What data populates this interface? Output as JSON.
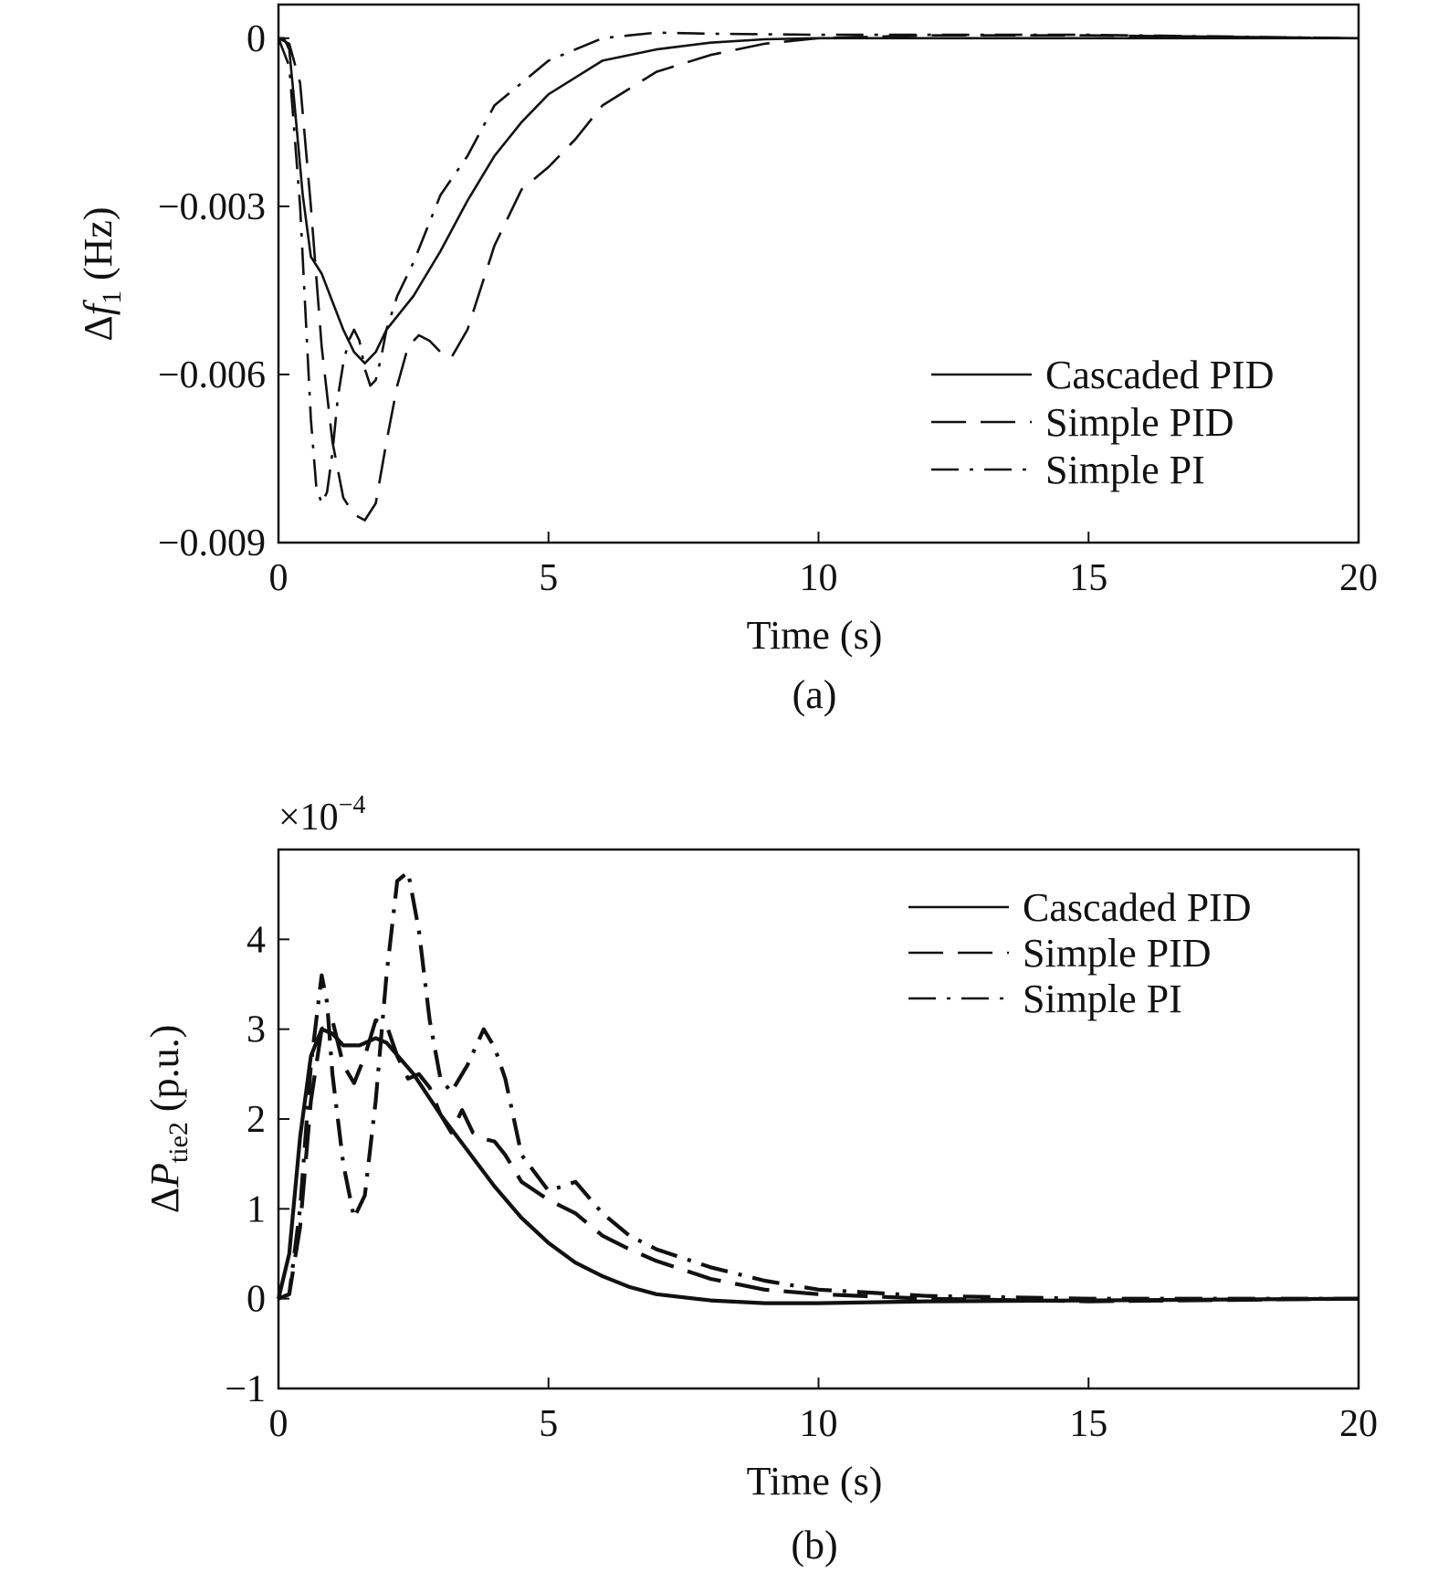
{
  "chart_data": [
    {
      "type": "line",
      "panel": "(a)",
      "xlabel": "Time (s)",
      "ylabel": "Δf₁ (Hz)",
      "ylabel_main": "Δ",
      "ylabel_var": "f",
      "ylabel_sub": "1",
      "ylabel_unit": " (Hz)",
      "xlim": [
        0,
        20
      ],
      "ylim": [
        -0.009,
        0.0006
      ],
      "xticks": [
        0,
        5,
        10,
        15,
        20
      ],
      "xtick_labels": [
        "0",
        "5",
        "10",
        "15",
        "20"
      ],
      "yticks": [
        0,
        -0.003,
        -0.006,
        -0.009
      ],
      "ytick_labels": [
        "0",
        "−0.003",
        "−0.006",
        "−0.009"
      ],
      "grid": false,
      "legend_position": "lower-right",
      "series": [
        {
          "name": "Cascaded PID",
          "style": "solid",
          "x": [
            0,
            0.1,
            0.2,
            0.3,
            0.45,
            0.6,
            0.8,
            1.0,
            1.2,
            1.4,
            1.6,
            1.8,
            2.0,
            2.5,
            3.0,
            3.5,
            4.0,
            4.5,
            5.0,
            5.5,
            6.0,
            7.0,
            8.0,
            9.0,
            10.0,
            12.0,
            15.0,
            20.0
          ],
          "y": [
            0,
            0,
            -0.0002,
            -0.0012,
            -0.0028,
            -0.0039,
            -0.0042,
            -0.0047,
            -0.0052,
            -0.0056,
            -0.0058,
            -0.0056,
            -0.0052,
            -0.0046,
            -0.0038,
            -0.0029,
            -0.0021,
            -0.0015,
            -0.001,
            -0.0007,
            -0.0004,
            -0.0002,
            -8e-05,
            -2e-05,
            0,
            0,
            0,
            0
          ]
        },
        {
          "name": "Simple PID",
          "style": "dashed",
          "x": [
            0,
            0.2,
            0.4,
            0.6,
            0.8,
            1.0,
            1.2,
            1.4,
            1.6,
            1.8,
            2.0,
            2.2,
            2.4,
            2.6,
            2.8,
            3.0,
            3.2,
            3.5,
            3.8,
            4.0,
            4.5,
            5.0,
            5.5,
            6.0,
            6.5,
            7.0,
            8.0,
            9.0,
            10.0,
            12.0,
            15.0,
            20.0
          ],
          "y": [
            0,
            -0.0001,
            -0.0008,
            -0.003,
            -0.0055,
            -0.0072,
            -0.0082,
            -0.0085,
            -0.0086,
            -0.0083,
            -0.0072,
            -0.0062,
            -0.0055,
            -0.0053,
            -0.0054,
            -0.0056,
            -0.0057,
            -0.0052,
            -0.0043,
            -0.0037,
            -0.0027,
            -0.0023,
            -0.0018,
            -0.0012,
            -0.0009,
            -0.0006,
            -0.0003,
            -0.0001,
            0,
            5e-05,
            5e-05,
            0
          ]
        },
        {
          "name": "Simple PI",
          "style": "dash-dot",
          "x": [
            0,
            0.2,
            0.4,
            0.6,
            0.7,
            0.8,
            0.9,
            1.0,
            1.1,
            1.2,
            1.3,
            1.4,
            1.5,
            1.6,
            1.7,
            1.8,
            1.9,
            2.0,
            2.2,
            2.5,
            3.0,
            3.5,
            4.0,
            4.5,
            5.0,
            5.5,
            6.0,
            6.5,
            7.0,
            8.0,
            10.0,
            15.0,
            20.0
          ],
          "y": [
            0,
            -0.0005,
            -0.003,
            -0.0068,
            -0.008,
            -0.0083,
            -0.0081,
            -0.0074,
            -0.0064,
            -0.0058,
            -0.0054,
            -0.0052,
            -0.0054,
            -0.0059,
            -0.0062,
            -0.0061,
            -0.0057,
            -0.0052,
            -0.0046,
            -0.004,
            -0.0028,
            -0.0021,
            -0.0012,
            -0.0008,
            -0.0004,
            -0.0002,
            0,
            5e-05,
            0.0001,
            8e-05,
            6e-05,
            6e-05,
            0
          ]
        }
      ]
    },
    {
      "type": "line",
      "panel": "(b)",
      "xlabel": "Time (s)",
      "ylabel": "ΔP_tie2 (p.u.)",
      "ylabel_main": "Δ",
      "ylabel_var": "P",
      "ylabel_sub": "tie2",
      "ylabel_unit": " (p.u.)",
      "multiplier": "×10",
      "multiplier_exp": "−4",
      "xlim": [
        0,
        20
      ],
      "ylim": [
        -1,
        5
      ],
      "xticks": [
        0,
        5,
        10,
        15,
        20
      ],
      "xtick_labels": [
        "0",
        "5",
        "10",
        "15",
        "20"
      ],
      "yticks": [
        4,
        3,
        2,
        1,
        0,
        -1
      ],
      "ytick_labels": [
        "4",
        "3",
        "2",
        "1",
        "0",
        "−1"
      ],
      "grid": false,
      "legend_position": "upper-right",
      "series": [
        {
          "name": "Cascaded PID",
          "style": "solid",
          "x": [
            0,
            0.2,
            0.4,
            0.6,
            0.8,
            1.0,
            1.2,
            1.5,
            1.8,
            2.0,
            2.5,
            3.0,
            3.5,
            4.0,
            4.5,
            5.0,
            5.5,
            6.0,
            6.5,
            7.0,
            8.0,
            9.0,
            10.0,
            12.0,
            15.0,
            20.0
          ],
          "y": [
            0,
            0.5,
            1.8,
            2.7,
            3.0,
            2.95,
            2.82,
            2.82,
            2.9,
            2.85,
            2.5,
            2.05,
            1.65,
            1.25,
            0.9,
            0.62,
            0.4,
            0.25,
            0.13,
            0.05,
            -0.02,
            -0.05,
            -0.05,
            -0.03,
            -0.02,
            0
          ]
        },
        {
          "name": "Simple PID",
          "style": "dashed",
          "x": [
            0,
            0.2,
            0.4,
            0.6,
            0.8,
            1.0,
            1.2,
            1.4,
            1.6,
            1.8,
            2.0,
            2.2,
            2.4,
            2.6,
            2.8,
            3.0,
            3.2,
            3.4,
            3.6,
            3.8,
            4.0,
            4.2,
            4.5,
            5.0,
            5.5,
            6.0,
            6.5,
            7.0,
            8.0,
            9.0,
            10.0,
            12.0,
            15.0,
            20.0
          ],
          "y": [
            0,
            0.05,
            0.8,
            2.2,
            3.0,
            3.1,
            2.6,
            2.4,
            2.7,
            3.1,
            3.05,
            2.7,
            2.45,
            2.5,
            2.35,
            2.05,
            1.85,
            2.1,
            1.85,
            1.78,
            1.75,
            1.6,
            1.3,
            1.1,
            0.95,
            0.7,
            0.55,
            0.42,
            0.22,
            0.1,
            0.05,
            0,
            -0.03,
            0
          ]
        },
        {
          "name": "Simple PI",
          "style": "dash-dot",
          "x": [
            0,
            0.2,
            0.4,
            0.6,
            0.8,
            0.9,
            1.0,
            1.2,
            1.4,
            1.6,
            1.8,
            2.0,
            2.2,
            2.4,
            2.6,
            2.8,
            3.0,
            3.2,
            3.5,
            3.8,
            4.0,
            4.2,
            4.5,
            5.0,
            5.5,
            6.0,
            6.5,
            7.0,
            8.0,
            9.0,
            10.0,
            12.0,
            15.0,
            20.0
          ],
          "y": [
            0,
            0.05,
            1.0,
            2.6,
            3.6,
            3.3,
            2.5,
            1.5,
            0.9,
            1.15,
            2.2,
            3.6,
            4.65,
            4.75,
            4.1,
            3.1,
            2.45,
            2.3,
            2.6,
            3.0,
            2.8,
            2.45,
            1.6,
            1.2,
            1.3,
            0.95,
            0.7,
            0.55,
            0.35,
            0.2,
            0.1,
            0.03,
            0,
            0
          ]
        }
      ]
    }
  ],
  "legend_labels": [
    "Cascaded PID",
    "Simple PID",
    "Simple PI"
  ]
}
